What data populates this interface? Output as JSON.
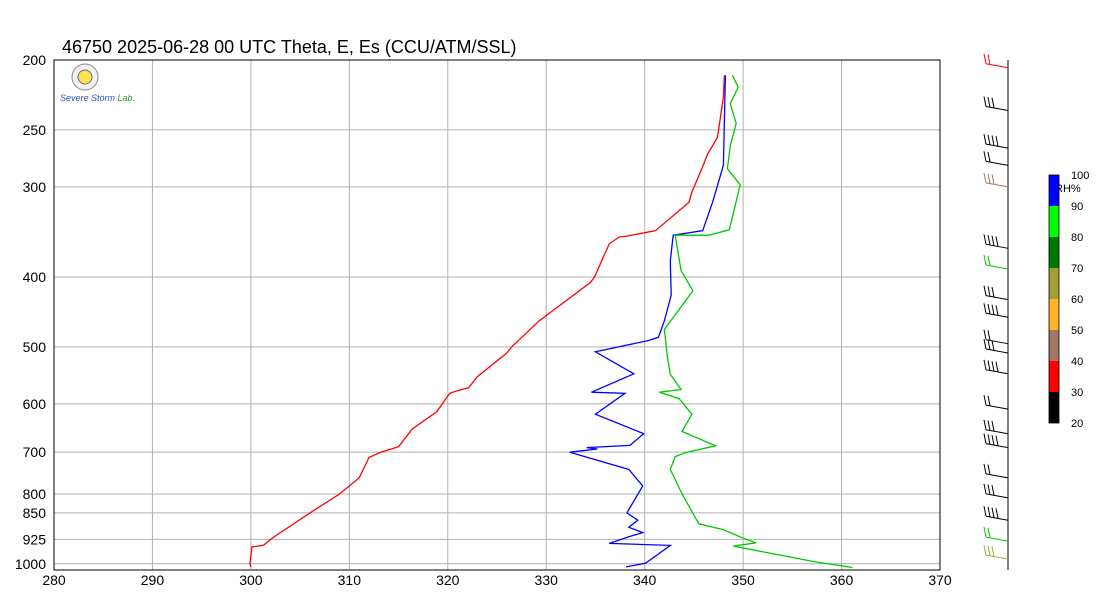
{
  "chart_data": {
    "type": "line",
    "title": "46750  2025-06-28 00 UTC  Theta, E, Es (CCU/ATM/SSL)",
    "logo_text": "Severe Storm Lab.",
    "xlim": [
      280,
      370
    ],
    "ylim": [
      1020,
      200
    ],
    "y_scale": "log",
    "x_ticks": [
      280,
      290,
      300,
      310,
      320,
      330,
      340,
      350,
      360,
      370
    ],
    "y_ticks": [
      200,
      250,
      300,
      400,
      500,
      600,
      700,
      800,
      850,
      925,
      1000
    ],
    "grid": true,
    "series": [
      {
        "color": "#ff0000",
        "points": [
          [
            300.0,
            1010
          ],
          [
            299.9,
            1000
          ],
          [
            300.1,
            948
          ],
          [
            301.3,
            942
          ],
          [
            302.0,
            925
          ],
          [
            303.0,
            905
          ],
          [
            306.0,
            850
          ],
          [
            309.0,
            800
          ],
          [
            311.0,
            760
          ],
          [
            312.0,
            712
          ],
          [
            313.2,
            700
          ],
          [
            315.0,
            688
          ],
          [
            316.4,
            650
          ],
          [
            318.9,
            615
          ],
          [
            320.2,
            580
          ],
          [
            321.0,
            575
          ],
          [
            322.1,
            570
          ],
          [
            323.0,
            550
          ],
          [
            326.0,
            510
          ],
          [
            326.5,
            500
          ],
          [
            329.3,
            460
          ],
          [
            334.5,
            407
          ],
          [
            334.9,
            400
          ],
          [
            336.4,
            360
          ],
          [
            337.4,
            352
          ],
          [
            338.2,
            351
          ],
          [
            341.1,
            345
          ],
          [
            344.5,
            315
          ],
          [
            344.8,
            305
          ],
          [
            345.8,
            283
          ],
          [
            346.4,
            270
          ],
          [
            347.4,
            256
          ],
          [
            348.0,
            225
          ],
          [
            348.1,
            210
          ]
        ]
      },
      {
        "color": "#0000ff",
        "points": [
          [
            338.1,
            1010
          ],
          [
            340.1,
            998
          ],
          [
            342.6,
            943
          ],
          [
            336.4,
            937
          ],
          [
            338.4,
            917
          ],
          [
            339.8,
            905
          ],
          [
            338.4,
            890
          ],
          [
            339.3,
            870
          ],
          [
            338.2,
            850
          ],
          [
            339.8,
            780
          ],
          [
            338.4,
            740
          ],
          [
            332.4,
            700
          ],
          [
            335.2,
            693
          ],
          [
            334.1,
            690
          ],
          [
            338.5,
            685
          ],
          [
            339.9,
            660
          ],
          [
            335.0,
            620
          ],
          [
            338.0,
            580
          ],
          [
            334.6,
            578
          ],
          [
            338.9,
            545
          ],
          [
            335.0,
            508
          ],
          [
            340.4,
            490
          ],
          [
            341.4,
            485
          ],
          [
            342.0,
            460
          ],
          [
            342.7,
            424
          ],
          [
            342.6,
            380
          ],
          [
            342.9,
            350
          ],
          [
            345.9,
            345
          ],
          [
            346.9,
            315
          ],
          [
            348.0,
            280
          ],
          [
            348.2,
            210
          ]
        ]
      },
      {
        "color": "#00c800",
        "points": [
          [
            361.1,
            1012
          ],
          [
            357.2,
            993
          ],
          [
            349.0,
            945
          ],
          [
            351.3,
            935
          ],
          [
            349.9,
            920
          ],
          [
            348.0,
            897
          ],
          [
            345.5,
            880
          ],
          [
            343.8,
            800
          ],
          [
            342.6,
            740
          ],
          [
            343.1,
            710
          ],
          [
            344.3,
            700
          ],
          [
            347.2,
            686
          ],
          [
            343.8,
            655
          ],
          [
            344.8,
            620
          ],
          [
            343.5,
            590
          ],
          [
            341.5,
            578
          ],
          [
            343.7,
            573
          ],
          [
            342.6,
            546
          ],
          [
            342.3,
            515
          ],
          [
            342.0,
            473
          ],
          [
            344.9,
            418
          ],
          [
            343.7,
            392
          ],
          [
            343.1,
            350
          ],
          [
            346.5,
            350
          ],
          [
            348.6,
            344
          ],
          [
            349.7,
            298
          ],
          [
            348.4,
            283
          ],
          [
            348.7,
            263
          ],
          [
            349.3,
            245
          ],
          [
            348.7,
            230
          ],
          [
            349.5,
            218
          ],
          [
            348.9,
            210
          ]
        ]
      }
    ]
  },
  "colorbar": {
    "title": "RH%",
    "ticks": [
      "100",
      "90",
      "80",
      "70",
      "60",
      "50",
      "40",
      "30",
      "20"
    ],
    "colors": [
      "#0000ff",
      "#00ff00",
      "#007800",
      "#a0a036",
      "#ffb428",
      "#a07864",
      "#ff0000",
      "#000000"
    ]
  },
  "wind_profile": {
    "barb_colors_by_level": [
      {
        "p": 205,
        "color": "#ff0000"
      },
      {
        "p": 235,
        "color": "#000000"
      },
      {
        "p": 265,
        "color": "#000000"
      },
      {
        "p": 280,
        "color": "#000000"
      },
      {
        "p": 300,
        "color": "#a07864"
      },
      {
        "p": 365,
        "color": "#000000"
      },
      {
        "p": 390,
        "color": "#00c800"
      },
      {
        "p": 430,
        "color": "#000000"
      },
      {
        "p": 455,
        "color": "#000000"
      },
      {
        "p": 495,
        "color": "#000000"
      },
      {
        "p": 510,
        "color": "#000000"
      },
      {
        "p": 545,
        "color": "#000000"
      },
      {
        "p": 610,
        "color": "#000000"
      },
      {
        "p": 660,
        "color": "#000000"
      },
      {
        "p": 690,
        "color": "#000000"
      },
      {
        "p": 760,
        "color": "#000000"
      },
      {
        "p": 810,
        "color": "#000000"
      },
      {
        "p": 870,
        "color": "#000000"
      },
      {
        "p": 930,
        "color": "#00c800"
      },
      {
        "p": 985,
        "color": "#a0a036"
      }
    ]
  }
}
